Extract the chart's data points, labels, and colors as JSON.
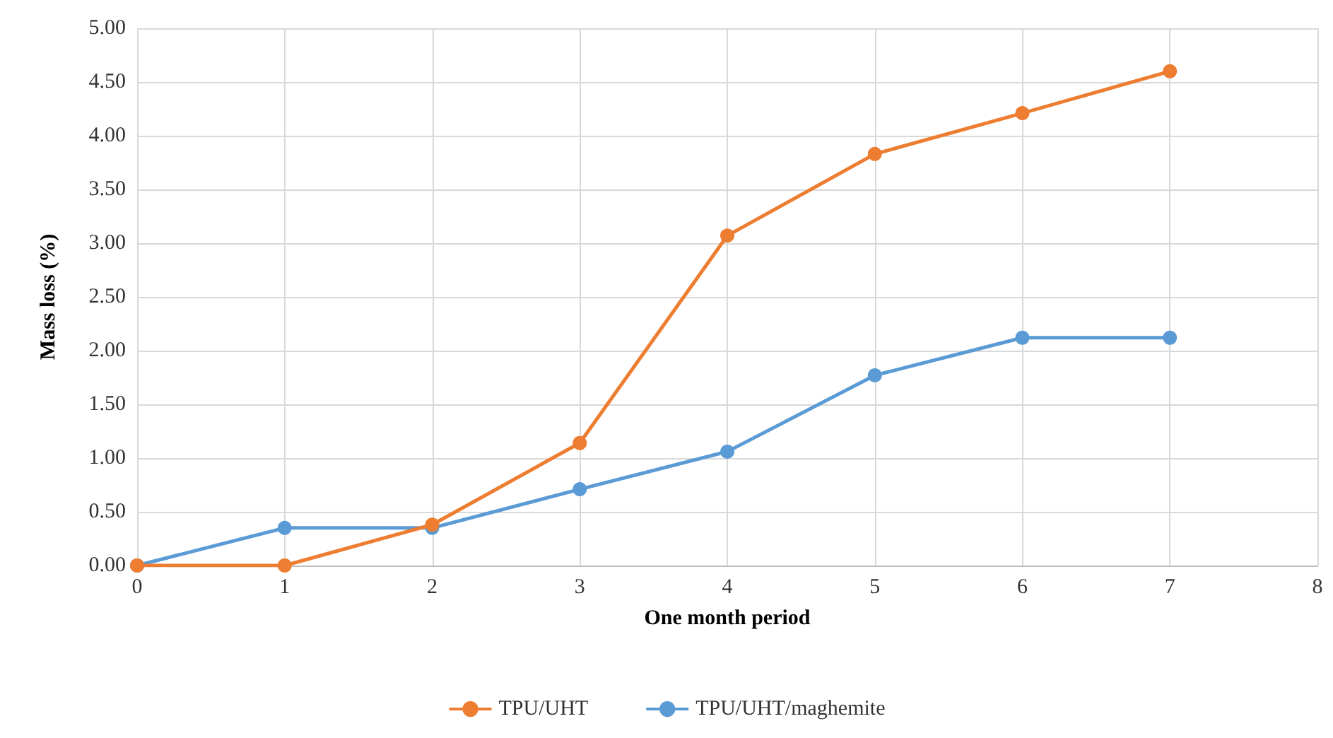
{
  "chart_data": {
    "type": "line",
    "xlabel": "One month period",
    "ylabel": "Mass loss (%)",
    "x": [
      0,
      1,
      2,
      3,
      4,
      5,
      6,
      7
    ],
    "series": [
      {
        "name": "TPU/UHT",
        "color": "#ed7d31",
        "values": [
          0,
          0,
          0.38,
          1.14,
          3.07,
          3.83,
          4.21,
          4.6
        ]
      },
      {
        "name": "TPU/UHT/maghemite",
        "color": "#5b9bd5",
        "values": [
          0,
          0.35,
          0.35,
          0.71,
          1.06,
          1.77,
          2.12,
          2.12
        ]
      }
    ],
    "xlim": [
      0,
      8
    ],
    "xticks": [
      0,
      1,
      2,
      3,
      4,
      5,
      6,
      7,
      8
    ],
    "ylim": [
      0,
      5
    ],
    "yticks": [
      {
        "value": 0,
        "label": "0.00"
      },
      {
        "value": 0.5,
        "label": "0.50"
      },
      {
        "value": 1,
        "label": "1.00"
      },
      {
        "value": 1.5,
        "label": "1.50"
      },
      {
        "value": 2,
        "label": "2.00"
      },
      {
        "value": 2.5,
        "label": "2.50"
      },
      {
        "value": 3,
        "label": "3.00"
      },
      {
        "value": 3.5,
        "label": "3.50"
      },
      {
        "value": 4,
        "label": "4.00"
      },
      {
        "value": 4.5,
        "label": "4.50"
      },
      {
        "value": 5,
        "label": "5.00"
      }
    ],
    "grid": true,
    "legend": "bottom",
    "marker": "circle",
    "line_style": "solid"
  }
}
